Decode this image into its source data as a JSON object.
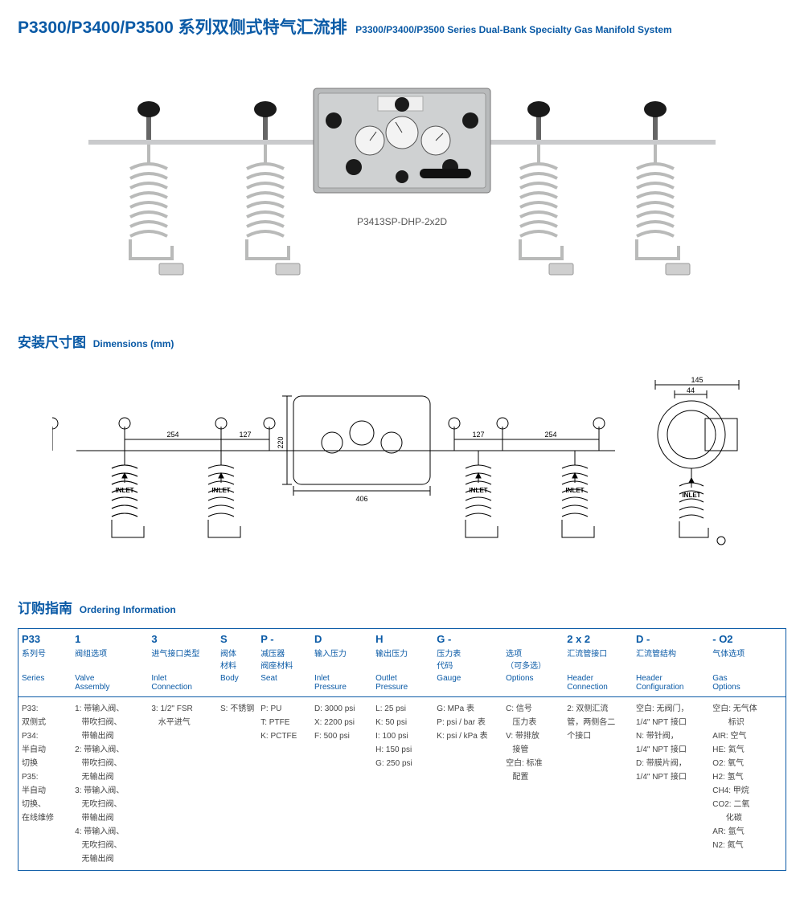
{
  "title": {
    "main_cn": "P3300/P3400/P3500 系列双侧式特气汇流排",
    "main_en": "P3300/P3400/P3500 Series Dual-Bank Specialty Gas Manifold System"
  },
  "photo": {
    "caption": "P3413SP-DHP-2x2D"
  },
  "dimensions_heading": {
    "cn": "安装尺寸图",
    "en": "Dimensions (mm)"
  },
  "dimensions": {
    "labels": {
      "inlet": "INLET"
    },
    "values": {
      "w_outer_span": "254",
      "w_inner_span": "127",
      "w_panel": "406",
      "h_panel": "220",
      "side_total_w": "145",
      "side_inner_w": "44"
    }
  },
  "ordering_heading": {
    "cn": "订购指南",
    "en": "Ordering Information"
  },
  "ordering": {
    "codes": [
      "P33",
      "1",
      "3",
      "S",
      "P  -",
      "D",
      "H",
      "G  -",
      "",
      "2  x  2",
      "D  -",
      "-  O2"
    ],
    "row_cn": [
      "系列号",
      "阀组选项",
      "进气接口类型",
      "阀体\n材料",
      "减压器\n阀座材料",
      "输入压力",
      "输出压力",
      "压力表\n代码",
      "选项\n（可多选）",
      "汇流管接口",
      "汇流管结构",
      "气体选项"
    ],
    "row_en": [
      "Series",
      "Valve\nAssembly",
      "Inlet\nConnection",
      "Body",
      "Seat",
      "Inlet\nPressure",
      "Outlet\nPressure",
      "Gauge",
      "Options",
      "Header\nConnection",
      "Header\nConfiguration",
      "Gas\nOptions"
    ],
    "body": [
      [
        "P33:",
        "双侧式",
        "P34:",
        "半自动",
        "切换",
        "P35:",
        "半自动",
        "切换、",
        "在线维修"
      ],
      [
        "1: 带输入阀、",
        "   带吹扫阀、",
        "   带输出阀",
        "2: 带输入阀、",
        "   带吹扫阀、",
        "   无输出阀",
        "3: 带输入阀、",
        "   无吹扫阀、",
        "   带输出阀",
        "4: 带输入阀、",
        "   无吹扫阀、",
        "   无输出阀"
      ],
      [
        "3: 1/2\" FSR",
        "   水平进气"
      ],
      [
        "S: 不锈钢"
      ],
      [
        "P: PU",
        "T: PTFE",
        "K: PCTFE"
      ],
      [
        "D: 3000 psi",
        "X: 2200 psi",
        "F: 500 psi"
      ],
      [
        "L: 25 psi",
        "K: 50 psi",
        "I: 100 psi",
        "H: 150 psi",
        "G: 250 psi"
      ],
      [
        "G: MPa 表",
        "P: psi / bar 表",
        "K: psi / kPa 表"
      ],
      [
        "C: 信号",
        "   压力表",
        "V: 带排放",
        "   接管",
        "空白: 标准",
        "   配置"
      ],
      [
        "2: 双侧汇流",
        "管，两侧各二",
        "个接口"
      ],
      [
        "空白: 无阀门，",
        "1/4\" NPT 接口",
        "N: 带针阀，",
        "1/4\" NPT 接口",
        "D: 带膜片阀，",
        "1/4\" NPT 接口"
      ],
      [
        "空白: 无气体",
        "       标识",
        "AIR: 空气",
        "HE: 氦气",
        "O2: 氧气",
        "H2: 氢气",
        "CH4: 甲烷",
        "CO2: 二氧",
        "      化碳",
        "AR: 氩气",
        "N2: 氮气"
      ]
    ],
    "col_widths_pct": [
      7,
      10,
      9,
      5,
      7,
      8,
      8,
      9,
      8,
      9,
      10,
      10
    ]
  },
  "colors": {
    "brand_blue": "#0a5aa6",
    "text_body": "#444444",
    "panel_grey": "#b8babb",
    "knob_black": "#1a1a1a",
    "steel": "#d6d7d8"
  }
}
